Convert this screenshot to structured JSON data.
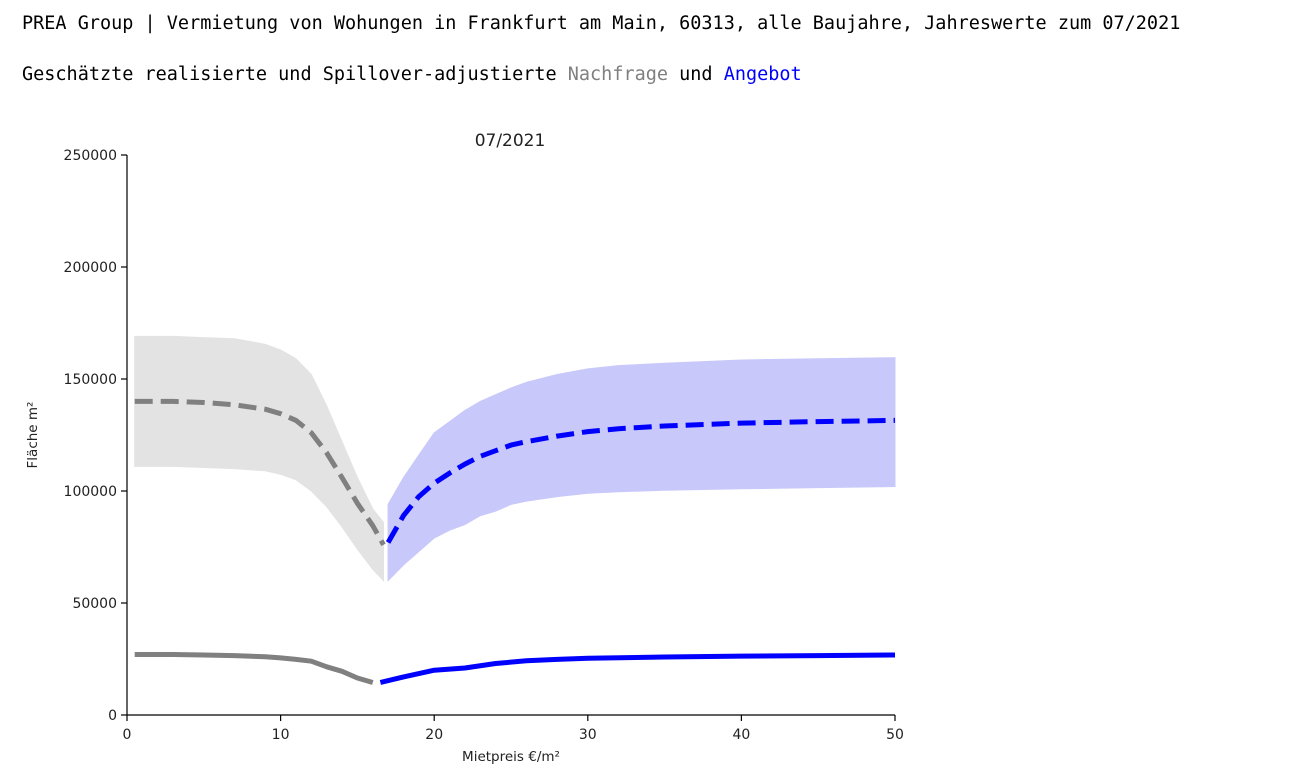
{
  "header": {
    "title": "PREA Group | Vermietung von Wohungen in Frankfurt am Main, 60313, alle Baujahre, Jahreswerte zum 07/2021",
    "subtitle_prefix": "Geschätzte realisierte und Spillover-adjustierte",
    "subtitle_demand": "Nachfrage",
    "subtitle_and": "und",
    "subtitle_supply": "Angebot"
  },
  "colors": {
    "demand": "#808080",
    "demand_band": "#e3e3e3",
    "supply": "#0000ff",
    "supply_band": "#c8c8fa"
  },
  "chart_data": {
    "type": "line",
    "title": "07/2021",
    "xlabel": "Mietpreis €/m²",
    "ylabel": "Fläche m²",
    "xlim": [
      0,
      50
    ],
    "ylim": [
      0,
      250000
    ],
    "xticks": [
      0,
      10,
      20,
      30,
      40,
      50
    ],
    "yticks": [
      0,
      50000,
      100000,
      150000,
      200000,
      250000
    ],
    "grid": false,
    "legend": "none",
    "series": [
      {
        "kind": "band",
        "color_key": "demand_band",
        "x": [
          0.5,
          3,
          5,
          7,
          9,
          10,
          11,
          12,
          13,
          14,
          15,
          16,
          16.7
        ],
        "lower": [
          111000,
          111000,
          110500,
          110000,
          109000,
          107500,
          105000,
          100000,
          93000,
          84000,
          74000,
          65000,
          60000
        ],
        "upper": [
          169000,
          169000,
          168500,
          168000,
          165500,
          163000,
          159000,
          152000,
          138000,
          122000,
          106000,
          92000,
          86000
        ]
      },
      {
        "kind": "band",
        "color_key": "supply_band",
        "x": [
          17,
          18,
          19,
          20,
          21,
          22,
          23,
          24,
          25,
          26,
          28,
          30,
          32,
          35,
          40,
          45,
          50
        ],
        "lower": [
          60000,
          67000,
          73000,
          79000,
          82500,
          85000,
          89000,
          91000,
          94000,
          95500,
          97500,
          99000,
          99700,
          100300,
          101000,
          101500,
          102000
        ],
        "upper": [
          94000,
          106000,
          116000,
          126000,
          131000,
          136000,
          140000,
          143000,
          146000,
          148500,
          152000,
          154500,
          156000,
          157000,
          158500,
          159000,
          159500
        ]
      },
      {
        "kind": "line",
        "style": "dashed",
        "color_key": "demand",
        "x": [
          0.5,
          3,
          5,
          7,
          9,
          10,
          11,
          12,
          13,
          14,
          15,
          16,
          16.7
        ],
        "y": [
          140000,
          140000,
          139500,
          138500,
          136500,
          134500,
          131500,
          126000,
          117000,
          106000,
          94500,
          84500,
          76000
        ]
      },
      {
        "kind": "line",
        "style": "dashed",
        "color_key": "supply",
        "x": [
          17,
          18,
          19,
          20,
          21,
          22,
          23,
          24,
          25,
          26,
          28,
          30,
          32,
          35,
          40,
          45,
          50
        ],
        "y": [
          77000,
          89000,
          97500,
          103500,
          108000,
          112000,
          115500,
          118000,
          120500,
          122000,
          124500,
          126500,
          127800,
          129000,
          130300,
          131000,
          131500
        ]
      },
      {
        "kind": "line",
        "style": "solid",
        "color_key": "demand",
        "x": [
          0.5,
          3,
          5,
          7,
          9,
          10,
          11,
          12,
          13,
          14,
          15,
          16
        ],
        "y": [
          27000,
          27000,
          26800,
          26500,
          26000,
          25500,
          24800,
          24000,
          21500,
          19500,
          16500,
          14500
        ]
      },
      {
        "kind": "line",
        "style": "solid",
        "color_key": "supply",
        "x": [
          16.5,
          18,
          20,
          22,
          24,
          26,
          28,
          30,
          35,
          40,
          45,
          50
        ],
        "y": [
          14500,
          17000,
          20000,
          21000,
          23000,
          24200,
          24800,
          25300,
          25900,
          26300,
          26500,
          26800
        ]
      }
    ]
  }
}
